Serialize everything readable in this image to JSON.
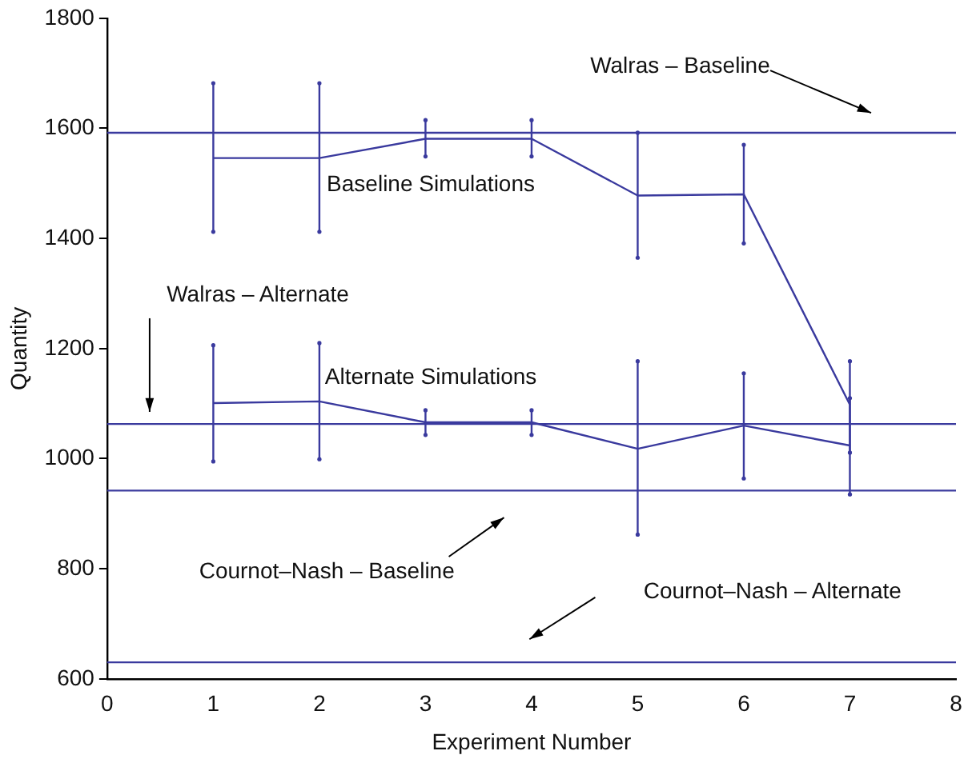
{
  "chart_data": {
    "type": "line",
    "xlabel": "Experiment Number",
    "ylabel": "Quantity",
    "x": [
      1,
      2,
      3,
      4,
      5,
      6,
      7
    ],
    "xlim": [
      0,
      8
    ],
    "xticks": [
      0,
      1,
      2,
      3,
      4,
      5,
      6,
      7,
      8
    ],
    "ylim": [
      600,
      1800
    ],
    "yticks": [
      600,
      800,
      1000,
      1200,
      1400,
      1600,
      1800
    ],
    "grid": false,
    "legend": false,
    "marker": "none",
    "line_style": "solid",
    "series": [
      {
        "name": "Baseline Simulations",
        "color": "#3a3a9e",
        "values": [
          1546,
          1546,
          1581,
          1581,
          1478,
          1480,
          1098
        ],
        "errors": [
          [
            1412,
            1682
          ],
          [
            1412,
            1682
          ],
          [
            1549,
            1615
          ],
          [
            1549,
            1615
          ],
          [
            1365,
            1592
          ],
          [
            1391,
            1570
          ],
          [
            935,
            1177
          ]
        ]
      },
      {
        "name": "Alternate Simulations",
        "color": "#3a3a9e",
        "values": [
          1101,
          1104,
          1066,
          1066,
          1018,
          1060,
          1024
        ],
        "errors": [
          [
            995,
            1206
          ],
          [
            999,
            1210
          ],
          [
            1043,
            1088
          ],
          [
            1043,
            1088
          ],
          [
            862,
            1177
          ],
          [
            964,
            1155
          ],
          [
            1011,
            1110
          ]
        ]
      }
    ],
    "ref_lines": [
      {
        "axis": "y",
        "value": 1592,
        "label": "Walras – Baseline",
        "color": "#3a3a9e"
      },
      {
        "axis": "y",
        "value": 1063,
        "label": "Walras – Alternate",
        "color": "#3a3a9e"
      },
      {
        "axis": "y",
        "value": 942,
        "label": "Cournot–Nash – Baseline",
        "color": "#3a3a9e"
      },
      {
        "axis": "y",
        "value": 630,
        "label": "Cournot–Nash – Alternate",
        "color": "#3a3a9e"
      }
    ]
  }
}
